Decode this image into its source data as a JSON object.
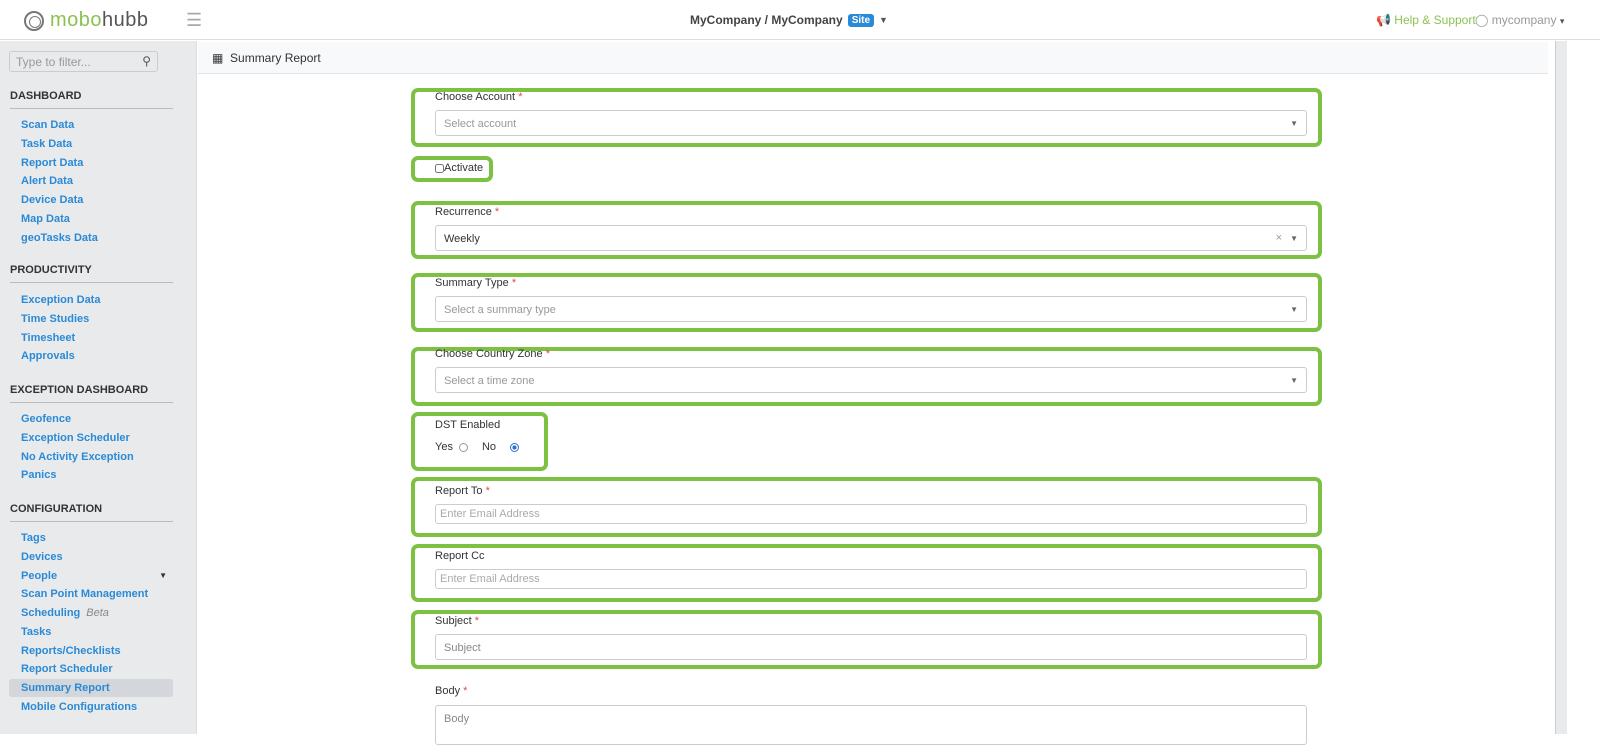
{
  "header": {
    "logo_a": "mobo",
    "logo_b": "hubb",
    "company": "MyCompany / MyCompany",
    "site_badge": "Site",
    "help": "Help & Support",
    "user": "mycompany"
  },
  "sidebar": {
    "filter_placeholder": "Type to filter...",
    "sections": [
      {
        "title": "DASHBOARD",
        "items": [
          "Scan Data",
          "Task Data",
          "Report Data",
          "Alert Data",
          "Device Data",
          "Map Data",
          "geoTasks Data"
        ]
      },
      {
        "title": "PRODUCTIVITY",
        "items": [
          "Exception Data",
          "Time Studies",
          "Timesheet",
          "Approvals"
        ]
      },
      {
        "title": "EXCEPTION DASHBOARD",
        "items": [
          "Geofence",
          "Exception Scheduler",
          "No Activity Exception",
          "Panics"
        ]
      },
      {
        "title": "CONFIGURATION",
        "items": [
          "Tags",
          "Devices",
          "People",
          "Scan Point Management",
          "Scheduling",
          "Tasks",
          "Reports/Checklists",
          "Report Scheduler",
          "Summary Report",
          "Mobile Configurations"
        ]
      }
    ],
    "beta_label": "Beta",
    "active": "Summary Report"
  },
  "breadcrumb": "Summary Report",
  "form": {
    "account": {
      "label": "Choose Account",
      "placeholder": "Select account"
    },
    "activate": {
      "label": "Activate",
      "checked": false
    },
    "recurrence": {
      "label": "Recurrence",
      "value": "Weekly"
    },
    "summary_type": {
      "label": "Summary Type",
      "placeholder": "Select a summary type"
    },
    "zone": {
      "label": "Choose Country Zone",
      "placeholder": "Select a time zone"
    },
    "dst": {
      "label": "DST Enabled",
      "yes": "Yes",
      "no": "No",
      "selected": "No"
    },
    "report_to": {
      "label": "Report To",
      "placeholder": "Enter Email Address"
    },
    "report_cc": {
      "label": "Report Cc",
      "placeholder": "Enter Email Address"
    },
    "subject": {
      "label": "Subject",
      "placeholder": "Subject"
    },
    "body": {
      "label": "Body",
      "placeholder": "Body"
    },
    "required_mark": "*"
  },
  "highlight_color": "#7dc142"
}
